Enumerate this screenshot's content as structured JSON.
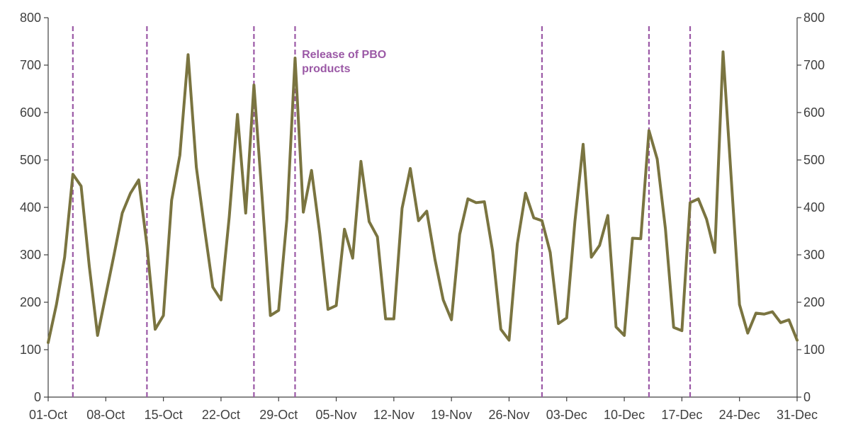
{
  "chart_data": {
    "type": "line",
    "title": "",
    "xlabel": "",
    "ylabel": "",
    "ylim": [
      0,
      800
    ],
    "yticks": [
      0,
      100,
      200,
      300,
      400,
      500,
      600,
      700,
      800
    ],
    "y2ticks": [
      0,
      100,
      200,
      300,
      400,
      500,
      600,
      700,
      800
    ],
    "xlim": [
      "2018-10-01",
      "2018-12-31"
    ],
    "xticks": [
      {
        "label": "01-Oct",
        "date": "2018-10-01"
      },
      {
        "label": "08-Oct",
        "date": "2018-10-08"
      },
      {
        "label": "15-Oct",
        "date": "2018-10-15"
      },
      {
        "label": "22-Oct",
        "date": "2018-10-22"
      },
      {
        "label": "29-Oct",
        "date": "2018-10-29"
      },
      {
        "label": "05-Nov",
        "date": "2018-11-05"
      },
      {
        "label": "12-Nov",
        "date": "2018-11-12"
      },
      {
        "label": "19-Nov",
        "date": "2018-11-19"
      },
      {
        "label": "26-Nov",
        "date": "2018-11-26"
      },
      {
        "label": "03-Dec",
        "date": "2018-12-03"
      },
      {
        "label": "10-Dec",
        "date": "2018-12-10"
      },
      {
        "label": "17-Dec",
        "date": "2018-12-17"
      },
      {
        "label": "24-Dec",
        "date": "2018-12-24"
      },
      {
        "label": "31-Dec",
        "date": "2018-12-31"
      }
    ],
    "grid": false,
    "line_color": "#7a7440",
    "release_color": "#9b59a6",
    "release_dates": [
      "2018-10-04",
      "2018-10-13",
      "2018-10-26",
      "2018-10-31",
      "2018-11-30",
      "2018-12-13",
      "2018-12-18"
    ],
    "annotation": {
      "lines": [
        "Release of PBO",
        "products"
      ],
      "date": "2018-11-01",
      "y": 715
    },
    "series": [
      {
        "points": [
          [
            "2018-10-01",
            115
          ],
          [
            "2018-10-02",
            195
          ],
          [
            "2018-10-03",
            295
          ],
          [
            "2018-10-04",
            470
          ],
          [
            "2018-10-05",
            445
          ],
          [
            "2018-10-06",
            275
          ],
          [
            "2018-10-07",
            130
          ],
          [
            "2018-10-08",
            215
          ],
          [
            "2018-10-09",
            300
          ],
          [
            "2018-10-10",
            388
          ],
          [
            "2018-10-11",
            430
          ],
          [
            "2018-10-12",
            458
          ],
          [
            "2018-10-13",
            320
          ],
          [
            "2018-10-14",
            143
          ],
          [
            "2018-10-15",
            172
          ],
          [
            "2018-10-16",
            415
          ],
          [
            "2018-10-17",
            510
          ],
          [
            "2018-10-18",
            722
          ],
          [
            "2018-10-19",
            485
          ],
          [
            "2018-10-20",
            355
          ],
          [
            "2018-10-21",
            232
          ],
          [
            "2018-10-22",
            205
          ],
          [
            "2018-10-23",
            380
          ],
          [
            "2018-10-24",
            596
          ],
          [
            "2018-10-25",
            388
          ],
          [
            "2018-10-26",
            658
          ],
          [
            "2018-10-27",
            420
          ],
          [
            "2018-10-28",
            172
          ],
          [
            "2018-10-29",
            183
          ],
          [
            "2018-10-30",
            375
          ],
          [
            "2018-10-31",
            715
          ],
          [
            "2018-11-01",
            390
          ],
          [
            "2018-11-02",
            478
          ],
          [
            "2018-11-03",
            345
          ],
          [
            "2018-11-04",
            185
          ],
          [
            "2018-11-05",
            193
          ],
          [
            "2018-11-06",
            354
          ],
          [
            "2018-11-07",
            293
          ],
          [
            "2018-11-08",
            497
          ],
          [
            "2018-11-09",
            370
          ],
          [
            "2018-11-10",
            338
          ],
          [
            "2018-11-11",
            165
          ],
          [
            "2018-11-12",
            165
          ],
          [
            "2018-11-13",
            398
          ],
          [
            "2018-11-14",
            482
          ],
          [
            "2018-11-15",
            372
          ],
          [
            "2018-11-16",
            392
          ],
          [
            "2018-11-17",
            290
          ],
          [
            "2018-11-18",
            205
          ],
          [
            "2018-11-19",
            163
          ],
          [
            "2018-11-20",
            343
          ],
          [
            "2018-11-21",
            418
          ],
          [
            "2018-11-22",
            410
          ],
          [
            "2018-11-23",
            412
          ],
          [
            "2018-11-24",
            308
          ],
          [
            "2018-11-25",
            143
          ],
          [
            "2018-11-26",
            120
          ],
          [
            "2018-11-27",
            323
          ],
          [
            "2018-11-28",
            430
          ],
          [
            "2018-11-29",
            378
          ],
          [
            "2018-11-30",
            372
          ],
          [
            "2018-12-01",
            305
          ],
          [
            "2018-12-02",
            155
          ],
          [
            "2018-12-03",
            167
          ],
          [
            "2018-12-04",
            370
          ],
          [
            "2018-12-05",
            533
          ],
          [
            "2018-12-06",
            295
          ],
          [
            "2018-12-07",
            320
          ],
          [
            "2018-12-08",
            383
          ],
          [
            "2018-12-09",
            148
          ],
          [
            "2018-12-10",
            130
          ],
          [
            "2018-12-11",
            335
          ],
          [
            "2018-12-12",
            334
          ],
          [
            "2018-12-13",
            562
          ],
          [
            "2018-12-14",
            502
          ],
          [
            "2018-12-15",
            355
          ],
          [
            "2018-12-16",
            147
          ],
          [
            "2018-12-17",
            140
          ],
          [
            "2018-12-18",
            410
          ],
          [
            "2018-12-19",
            418
          ],
          [
            "2018-12-20",
            375
          ],
          [
            "2018-12-21",
            305
          ],
          [
            "2018-12-22",
            728
          ],
          [
            "2018-12-23",
            460
          ],
          [
            "2018-12-24",
            195
          ],
          [
            "2018-12-25",
            135
          ],
          [
            "2018-12-26",
            177
          ],
          [
            "2018-12-27",
            175
          ],
          [
            "2018-12-28",
            180
          ],
          [
            "2018-12-29",
            157
          ],
          [
            "2018-12-30",
            163
          ],
          [
            "2018-12-31",
            120
          ]
        ]
      }
    ]
  }
}
